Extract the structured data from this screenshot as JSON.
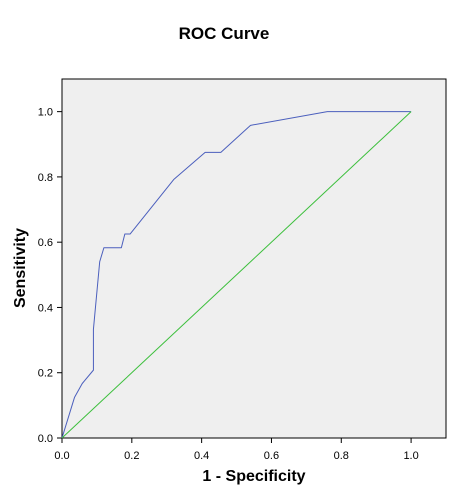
{
  "chart_data": {
    "type": "line",
    "title": "ROC Curve",
    "xlabel": "1 - Specificity",
    "ylabel": "Sensitivity",
    "xlim": [
      0,
      1.1
    ],
    "ylim": [
      0,
      1.1
    ],
    "xticks": [
      0.0,
      0.2,
      0.4,
      0.6,
      0.8,
      1.0
    ],
    "yticks": [
      0.0,
      0.2,
      0.4,
      0.6,
      0.8,
      1.0
    ],
    "xtick_labels": [
      "0.0",
      "0.2",
      "0.4",
      "0.6",
      "0.8",
      "1.0"
    ],
    "ytick_labels": [
      "0.0",
      "0.2",
      "0.4",
      "0.6",
      "0.8",
      "1.0"
    ],
    "grid": false,
    "background": "#efefef",
    "series": [
      {
        "color": "#4b5fbd",
        "x": [
          0.0,
          0.036,
          0.058,
          0.09,
          0.09,
          0.108,
          0.12,
          0.125,
          0.17,
          0.18,
          0.192,
          0.195,
          0.32,
          0.41,
          0.455,
          0.54,
          0.76,
          1.0
        ],
        "y": [
          0.0,
          0.125,
          0.167,
          0.208,
          0.333,
          0.54,
          0.583,
          0.583,
          0.583,
          0.625,
          0.625,
          0.625,
          0.792,
          0.875,
          0.875,
          0.958,
          1.0,
          1.0
        ]
      },
      {
        "color": "#3cbf3c",
        "x": [
          0.0,
          1.0
        ],
        "y": [
          0.0,
          1.0
        ]
      }
    ]
  }
}
